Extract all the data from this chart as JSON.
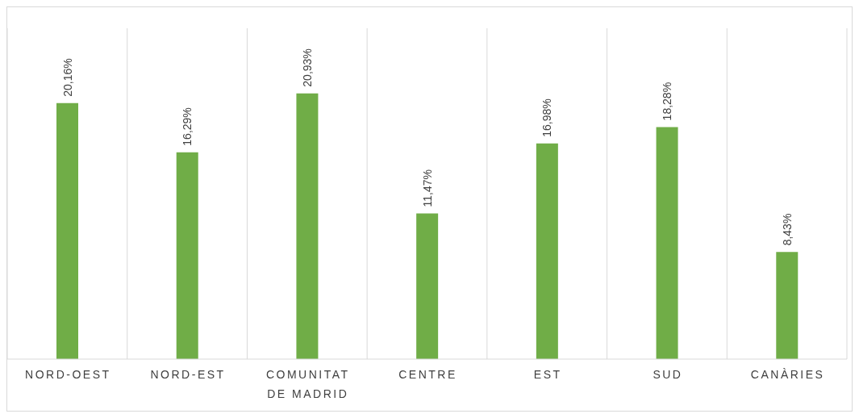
{
  "chart_data": {
    "type": "bar",
    "categories": [
      "NORD-OEST",
      "NORD-EST",
      "COMUNITAT DE MADRID",
      "CENTRE",
      "EST",
      "SUD",
      "CANÀRIES"
    ],
    "values": [
      20.16,
      16.29,
      20.93,
      11.47,
      16.98,
      18.28,
      8.43
    ],
    "value_labels": [
      "20,16%",
      "16,29%",
      "20,93%",
      "11,47%",
      "16,98%",
      "18,28%",
      "8,43%"
    ],
    "color": "#70ad47",
    "grid": "x",
    "tick_labels": "x"
  }
}
